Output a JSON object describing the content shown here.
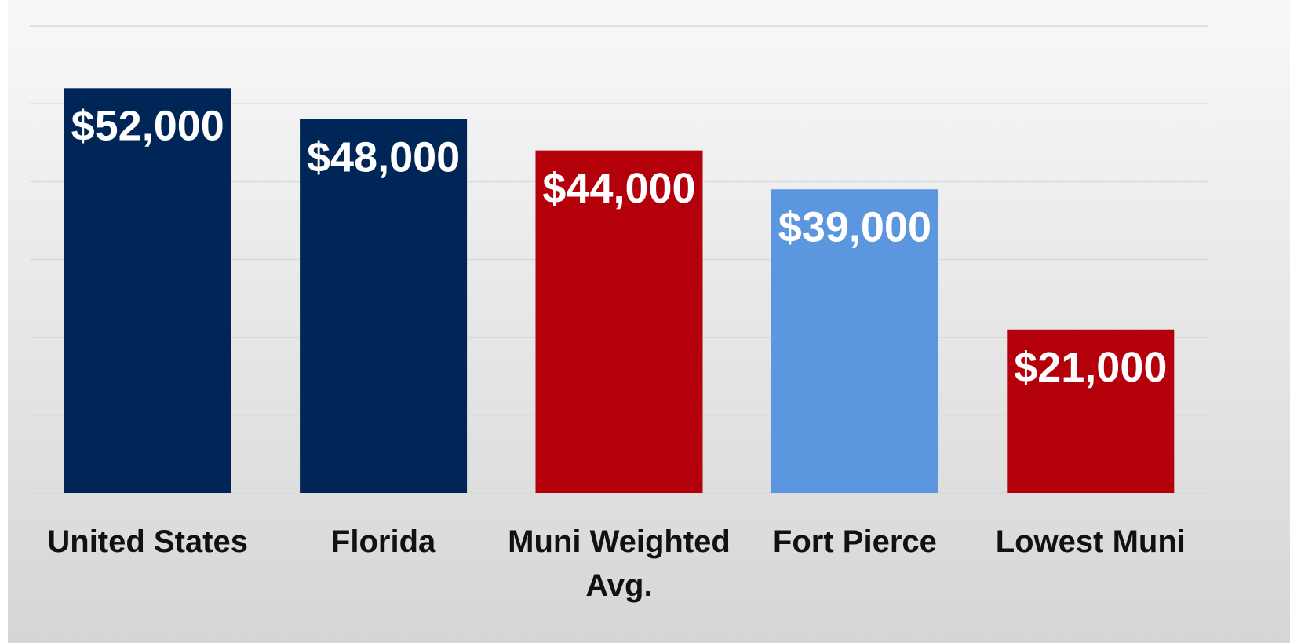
{
  "chart_data": {
    "type": "bar",
    "categories": [
      "United States",
      "Florida",
      "Muni Weighted Avg.",
      "Fort Pierce",
      "Lowest Muni"
    ],
    "values": [
      52000,
      48000,
      44000,
      39000,
      21000
    ],
    "value_labels": [
      "$52,000",
      "$48,000",
      "$44,000",
      "$39,000",
      "$21,000"
    ],
    "colors": [
      "#002657",
      "#002657",
      "#b3000a",
      "#5b96de",
      "#b3000a"
    ],
    "ylim": [
      0,
      60000
    ],
    "yticks": [
      0,
      10000,
      20000,
      30000,
      40000,
      50000,
      60000
    ],
    "grid": true
  }
}
